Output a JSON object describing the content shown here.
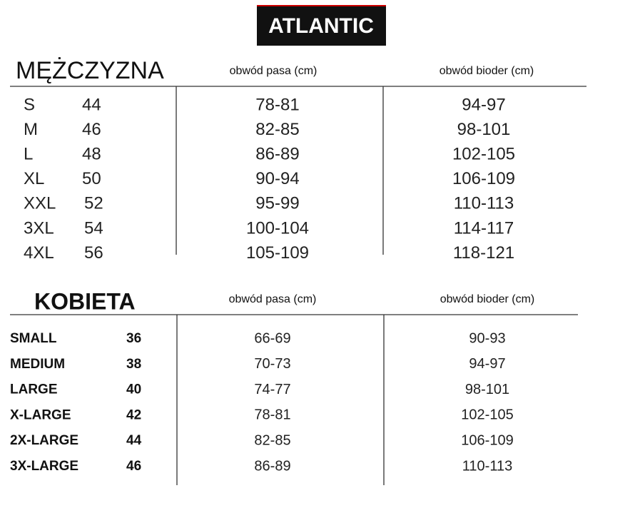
{
  "header": {
    "logo": "ATLANTIC"
  },
  "men": {
    "title": "MĘŻCZYZNA",
    "columns": [
      "obwód pasa (cm)",
      "obwód bioder (cm)"
    ],
    "rows": [
      [
        "S",
        44,
        "78-81",
        "94-97"
      ],
      [
        "M",
        46,
        "82-85",
        "98-101"
      ],
      [
        "L",
        48,
        "86-89",
        "102-105"
      ],
      [
        "XL",
        50,
        "90-94",
        "106-109"
      ],
      [
        "XXL",
        52,
        "95-99",
        "110-113"
      ],
      [
        "3XL",
        54,
        "100-104",
        "114-117"
      ],
      [
        "4XL",
        56,
        "105-109",
        "118-121"
      ]
    ]
  },
  "women": {
    "title": "KOBIETA",
    "columns": [
      "obwód pasa (cm)",
      "obwód bioder (cm)"
    ],
    "rows": [
      [
        "SMALL",
        36,
        "66-69",
        "90-93"
      ],
      [
        "MEDIUM",
        38,
        "70-73",
        "94-97"
      ],
      [
        "LARGE",
        40,
        "74-77",
        "98-101"
      ],
      [
        "X-LARGE",
        42,
        "78-81",
        "102-105"
      ],
      [
        "2X-LARGE",
        44,
        "82-85",
        "106-109"
      ],
      [
        "3X-LARGE",
        46,
        "86-89",
        "110-113"
      ]
    ]
  }
}
